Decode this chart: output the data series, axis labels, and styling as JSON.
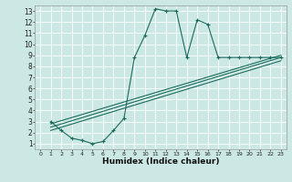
{
  "xlabel": "Humidex (Indice chaleur)",
  "bg_color": "#cce8e4",
  "grid_color": "#ffffff",
  "line_color": "#1a6b5e",
  "xlim": [
    -0.5,
    23.5
  ],
  "ylim": [
    0.5,
    13.5
  ],
  "xticks": [
    0,
    1,
    2,
    3,
    4,
    5,
    6,
    7,
    8,
    9,
    10,
    11,
    12,
    13,
    14,
    15,
    16,
    17,
    18,
    19,
    20,
    21,
    22,
    23
  ],
  "yticks": [
    1,
    2,
    3,
    4,
    5,
    6,
    7,
    8,
    9,
    10,
    11,
    12,
    13
  ],
  "series1_x": [
    1,
    2,
    3,
    4,
    5,
    6,
    7,
    8,
    9,
    10,
    11,
    12,
    13,
    14,
    15,
    16,
    17,
    18,
    19,
    20,
    21,
    22,
    23
  ],
  "series1_y": [
    3.0,
    2.2,
    1.5,
    1.3,
    1.0,
    1.2,
    2.2,
    3.3,
    8.8,
    10.8,
    13.2,
    13.0,
    13.0,
    8.8,
    12.2,
    11.8,
    8.8,
    8.8,
    8.8,
    8.8,
    8.8,
    8.8,
    8.8
  ],
  "series2_x": [
    1,
    23
  ],
  "series2_y": [
    2.8,
    9.0
  ],
  "series3_x": [
    1,
    23
  ],
  "series3_y": [
    2.5,
    8.8
  ],
  "series4_x": [
    1,
    23
  ],
  "series4_y": [
    2.2,
    8.5
  ]
}
